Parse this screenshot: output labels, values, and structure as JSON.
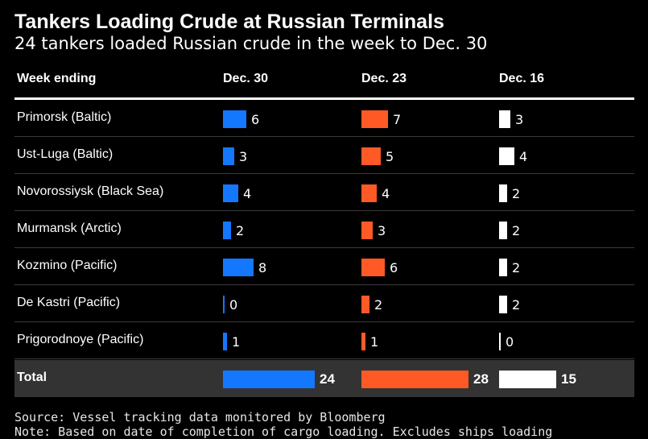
{
  "chart_data": {
    "type": "table",
    "title": "Tankers Loading Crude at Russian Terminals",
    "subtitle": "24 tankers loaded Russian crude in the week to Dec. 30",
    "label_header": "Week ending",
    "columns": [
      {
        "name": "Dec. 30",
        "color": "#1478ff"
      },
      {
        "name": "Dec. 23",
        "color": "#ff5a26"
      },
      {
        "name": "Dec. 16",
        "color": "#ffffff"
      }
    ],
    "rows": [
      {
        "label": "Primorsk (Baltic)",
        "values": [
          6,
          7,
          3
        ]
      },
      {
        "label": "Ust-Luga (Baltic)",
        "values": [
          3,
          5,
          4
        ]
      },
      {
        "label": "Novorossiysk (Black Sea)",
        "values": [
          4,
          4,
          2
        ]
      },
      {
        "label": "Murmansk (Arctic)",
        "values": [
          2,
          3,
          2
        ]
      },
      {
        "label": "Kozmino (Pacific)",
        "values": [
          8,
          6,
          2
        ]
      },
      {
        "label": "De Kastri (Pacific)",
        "values": [
          0,
          2,
          2
        ]
      },
      {
        "label": "Prigorodnoye (Pacific)",
        "values": [
          1,
          1,
          0
        ]
      }
    ],
    "total": {
      "label": "Total",
      "values": [
        24,
        28,
        15
      ]
    },
    "source": "Source: Vessel tracking data monitored by Bloomberg",
    "note": "Note: Based on date of completion of cargo loading. Excludes ships loading"
  }
}
